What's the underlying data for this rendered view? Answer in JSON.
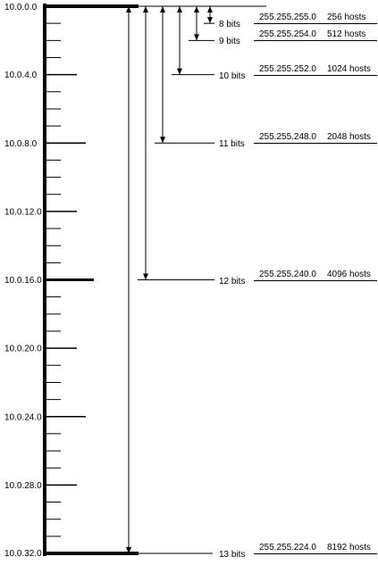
{
  "diagram": {
    "addresses": [
      "10.0.0.0",
      "10.0.4.0",
      "10.0.8.0",
      "10.0.12.0",
      "10.0.16.0",
      "10.0.20.0",
      "10.0.24.0",
      "10.0.28.0",
      "10.0.32.0"
    ],
    "subnets": [
      {
        "bits": "8 bits",
        "mask": "255.255.255.0",
        "hosts": "256 hosts",
        "blocks": 1
      },
      {
        "bits": "9 bits",
        "mask": "255.255.254.0",
        "hosts": "512 hosts",
        "blocks": 2
      },
      {
        "bits": "10 bits",
        "mask": "255.255.252.0",
        "hosts": "1024 hosts",
        "blocks": 4
      },
      {
        "bits": "11 bits",
        "mask": "255.255.248.0",
        "hosts": "2048 hosts",
        "blocks": 8
      },
      {
        "bits": "12 bits",
        "mask": "255.255.240.0",
        "hosts": "4096 hosts",
        "blocks": 16
      },
      {
        "bits": "13 bits",
        "mask": "255.255.224.0",
        "hosts": "8192 hosts",
        "blocks": 32
      }
    ]
  }
}
